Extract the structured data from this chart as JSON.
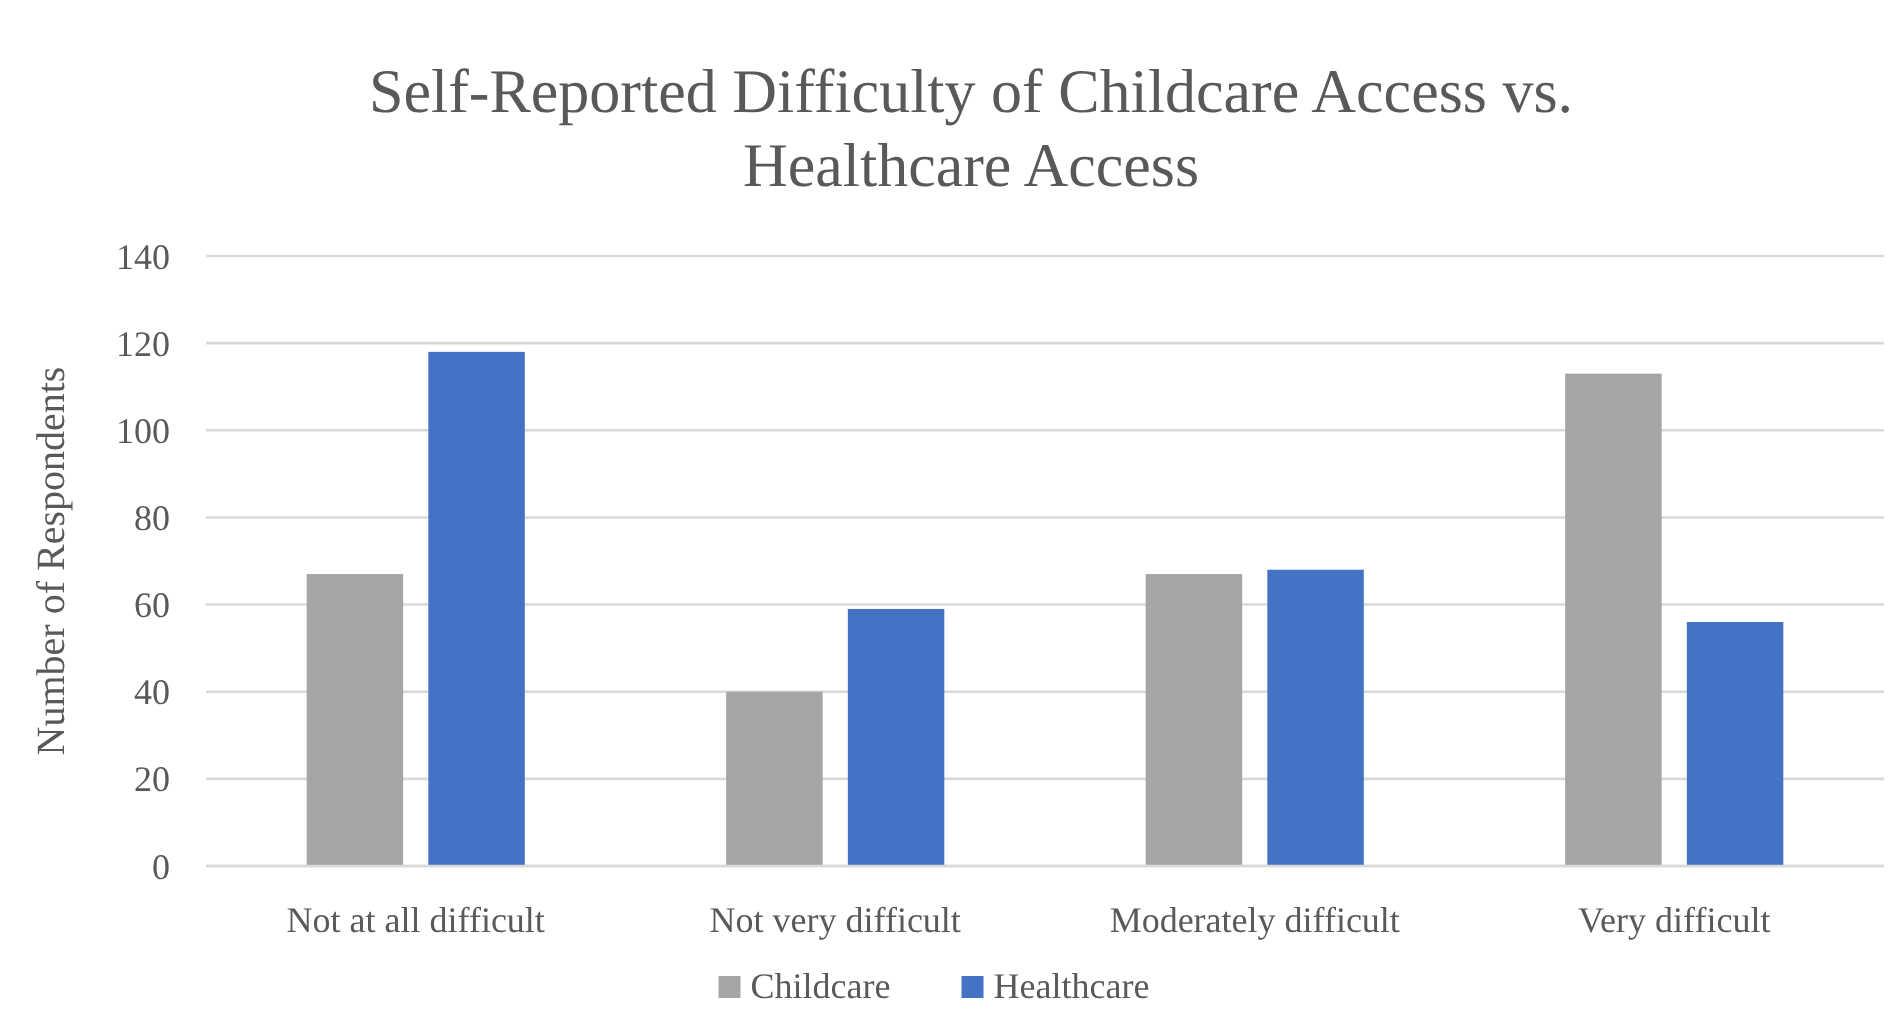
{
  "chart_data": {
    "type": "bar",
    "title": "Self-Reported Difficulty of Childcare Access vs. Healthcare Access",
    "ylabel": "Number of Respondents",
    "categories": [
      "Not at all difficult",
      "Not very difficult",
      "Moderately difficult",
      "Very difficult"
    ],
    "series": [
      {
        "name": "Childcare",
        "color": "#a5a5a5",
        "values": [
          67,
          40,
          67,
          113
        ]
      },
      {
        "name": "Healthcare",
        "color": "#4472c4",
        "values": [
          118,
          59,
          68,
          56
        ]
      }
    ],
    "ylim": [
      0,
      140
    ],
    "yticks": [
      0,
      20,
      40,
      60,
      80,
      100,
      120,
      140
    ],
    "grid": "y",
    "legend": "bottom"
  }
}
